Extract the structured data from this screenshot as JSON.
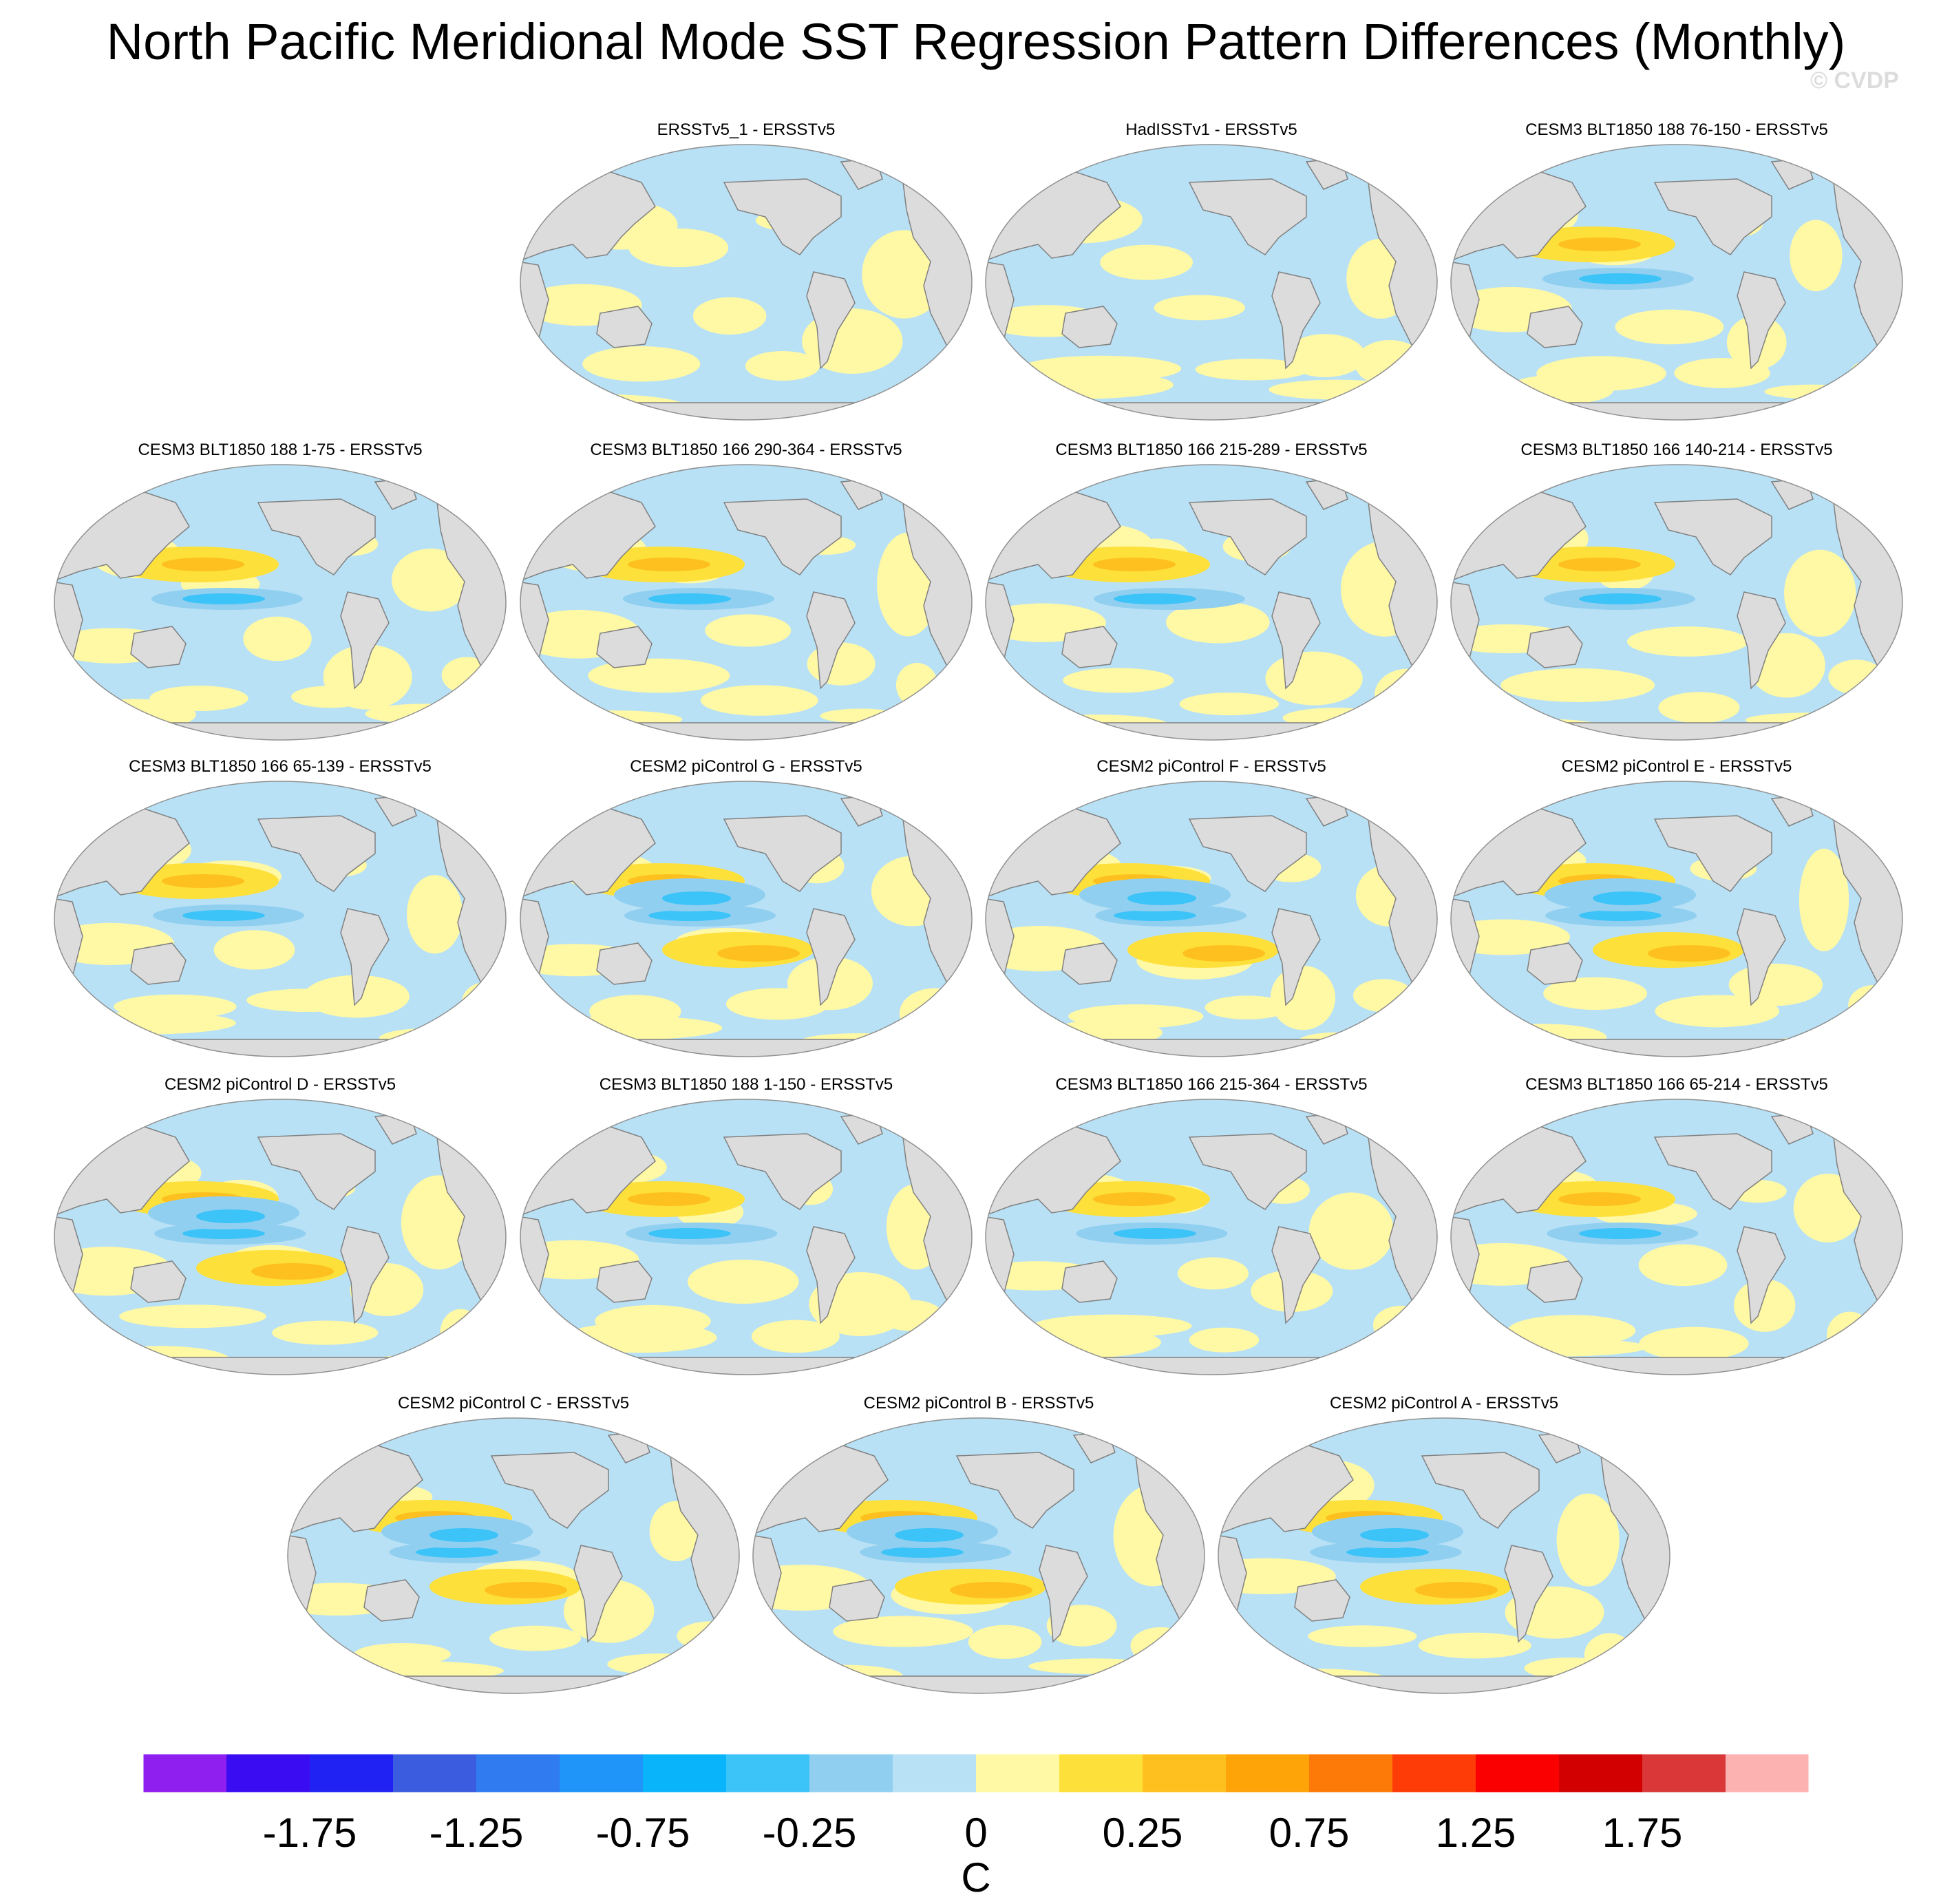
{
  "title": "North Pacific Meridional Mode SST Regression Pattern Differences (Monthly)",
  "watermark": "© CVDP",
  "chart_data": {
    "type": "heatmap",
    "title": "North Pacific Meridional Mode SST Regression Pattern Differences (Monthly)",
    "projection": "global map (Robinson-like), Pacific-centered",
    "panels": [
      {
        "title": "ERSSTv5_1 - ERSSTv5"
      },
      {
        "title": "HadISSTv1 - ERSSTv5"
      },
      {
        "title": "CESM3 BLT1850 188 76-150 - ERSSTv5"
      },
      {
        "title": "CESM3 BLT1850 188 1-75 - ERSSTv5"
      },
      {
        "title": "CESM3 BLT1850 166 290-364 - ERSSTv5"
      },
      {
        "title": "CESM3 BLT1850 166 215-289 - ERSSTv5"
      },
      {
        "title": "CESM3 BLT1850 166 140-214 - ERSSTv5"
      },
      {
        "title": "CESM3 BLT1850 166 65-139 - ERSSTv5"
      },
      {
        "title": "CESM2 piControl G - ERSSTv5"
      },
      {
        "title": "CESM2 piControl F - ERSSTv5"
      },
      {
        "title": "CESM2 piControl E - ERSSTv5"
      },
      {
        "title": "CESM2 piControl D - ERSSTv5"
      },
      {
        "title": "CESM3 BLT1850 188 1-150 - ERSSTv5"
      },
      {
        "title": "CESM3 BLT1850 166 215-364 - ERSSTv5"
      },
      {
        "title": "CESM3 BLT1850 166 65-214 - ERSSTv5"
      },
      {
        "title": "CESM2 piControl C - ERSSTv5"
      },
      {
        "title": "CESM2 piControl B - ERSSTv5"
      },
      {
        "title": "CESM2 piControl A - ERSSTv5"
      }
    ],
    "colorbar": {
      "label": "C",
      "tick_labels": [
        "-1.75",
        "-1.25",
        "-0.75",
        "-0.25",
        "0",
        "0.25",
        "0.75",
        "1.25",
        "1.75"
      ],
      "colors": [
        "#8f1fef",
        "#3a0cf2",
        "#1f22f2",
        "#3c5cdf",
        "#2f7bef",
        "#1f95f9",
        "#0ab4fb",
        "#3cc3f8",
        "#91cff0",
        "#b8e1f6",
        "#fff8a5",
        "#fee03a",
        "#fec01e",
        "#fea308",
        "#fe7a08",
        "#fe3c08",
        "#fb0000",
        "#d20000",
        "#da3838",
        "#fdb2b2"
      ]
    }
  },
  "colors": {
    "land": "#dcdcdc",
    "coast": "#808080",
    "ocean_pos": "#fff8a5",
    "ocean_neg": "#b8e1f6",
    "warm": "#fee03a",
    "warmer": "#fec01e",
    "cool": "#91cff0",
    "cold": "#3cc3f8"
  }
}
